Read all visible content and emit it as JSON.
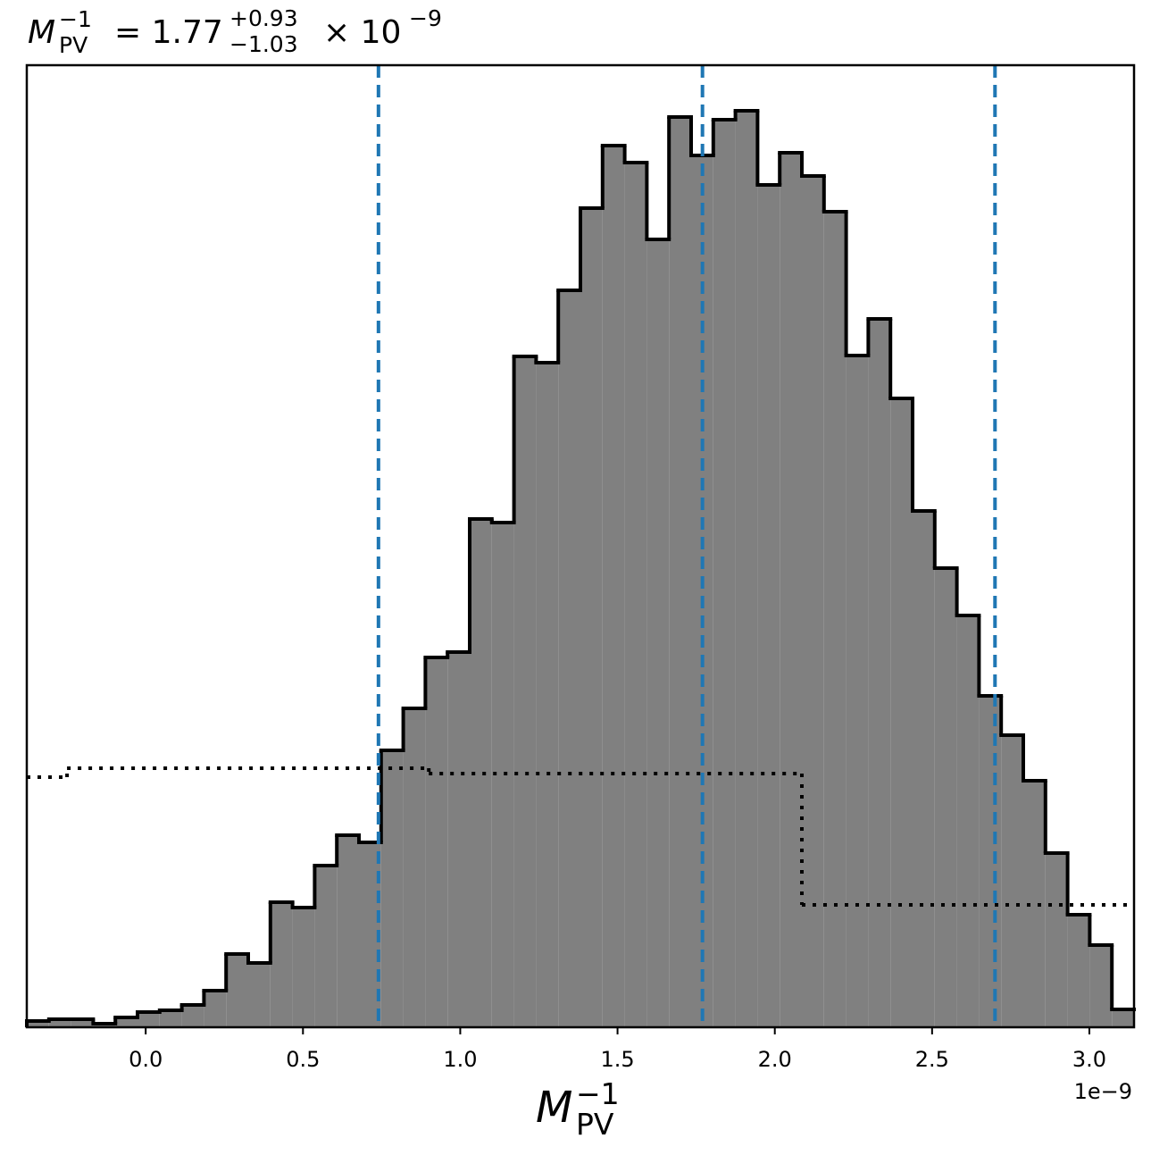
{
  "chart_data": {
    "type": "histogram",
    "title": {
      "symbol": "M",
      "subscript": "PV",
      "superscript": "−1",
      "text": "= 1.77",
      "upper": "+0.93",
      "lower": "−1.03",
      "tail": "× 10",
      "exponent": "−9"
    },
    "xlabel": {
      "symbol": "M",
      "subscript": "PV",
      "superscript": "−1"
    },
    "x_offset_label": "1e−9",
    "bins": [
      -0.378,
      -0.3076,
      -0.2372,
      -0.1668,
      -0.0964,
      -0.026,
      0.0444,
      0.1148,
      0.1852,
      0.2556,
      0.326,
      0.3964,
      0.4668,
      0.5372,
      0.6076,
      0.678,
      0.7484,
      0.8188,
      0.8892,
      0.9596,
      1.03,
      1.1004,
      1.1708,
      1.2412,
      1.3116,
      1.382,
      1.4524,
      1.5228,
      1.5932,
      1.6636,
      1.734,
      1.8044,
      1.8748,
      1.9452,
      2.0156,
      2.086,
      2.1564,
      2.2268,
      2.2972,
      2.3676,
      2.438,
      2.5084,
      2.5788,
      2.6492,
      2.7196,
      2.79,
      2.8604,
      2.9308,
      3.0012,
      3.0716,
      3.142
    ],
    "values": [
      7,
      9,
      9,
      4,
      11,
      17,
      19,
      25,
      41,
      82,
      72,
      140,
      134,
      181,
      215,
      207,
      310,
      357,
      414,
      420,
      569,
      565,
      751,
      744,
      825,
      917,
      987,
      968,
      882,
      1019,
      976,
      1016,
      1026,
      943,
      979,
      953,
      913,
      752,
      793,
      704,
      578,
      514,
      461,
      371,
      327,
      276,
      195,
      126,
      92,
      20
    ],
    "color": "#808080",
    "edgecolor": "#000000",
    "prior": {
      "bins": [
        -0.378,
        -0.25,
        0.9,
        2.086,
        3.142
      ],
      "values": [
        280,
        290,
        284,
        137
      ],
      "color": "#000000",
      "linestyle": "dotted"
    },
    "quantiles": {
      "values": [
        0.74,
        1.77,
        2.7
      ],
      "color": "#1f77b4",
      "linestyle": "dashed"
    },
    "xlim": [
      -0.378,
      3.142
    ],
    "ylim": [
      0,
      1077
    ],
    "xticks": [
      {
        "value": 0,
        "label": "0.0"
      },
      {
        "value": 0.5,
        "label": "0.5"
      },
      {
        "value": 1,
        "label": "1.0"
      },
      {
        "value": 1.5,
        "label": "1.5"
      },
      {
        "value": 2,
        "label": "2.0"
      },
      {
        "value": 2.5,
        "label": "2.5"
      },
      {
        "value": 3,
        "label": "3.0"
      }
    ]
  }
}
